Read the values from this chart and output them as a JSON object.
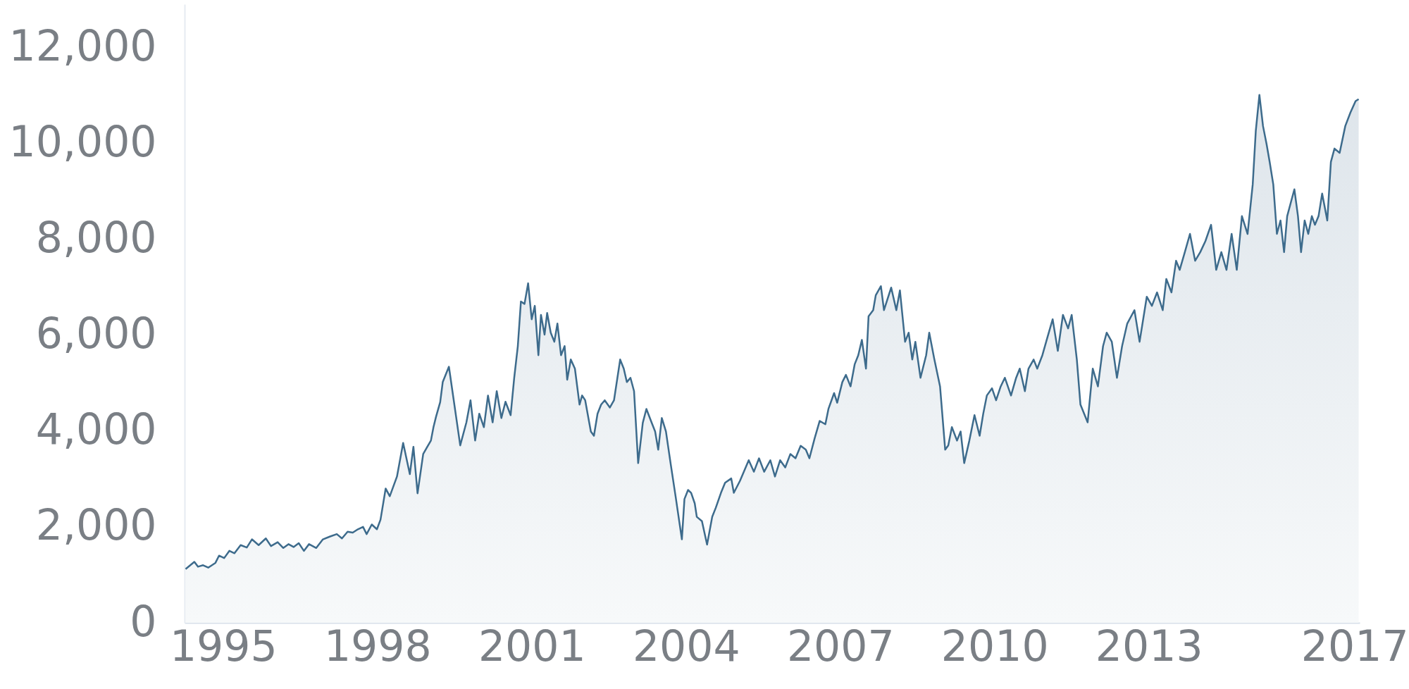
{
  "chart_data": {
    "type": "area",
    "xlim": [
      1994.25,
      2017.1
    ],
    "xticks": [
      1995,
      1998,
      2001,
      2004,
      2007,
      2010,
      2013,
      2017
    ],
    "ylim": [
      0,
      12900
    ],
    "yticks": [
      0,
      {
        "value": 2000,
        "label": "2,000"
      },
      {
        "value": 4000,
        "label": "4,000"
      },
      {
        "value": 6000,
        "label": "6,000"
      },
      {
        "value": 8000,
        "label": "8,000"
      },
      {
        "value": 10000,
        "label": "10,000"
      },
      {
        "value": 12000,
        "label": "12,000"
      }
    ],
    "grid": false,
    "marker": "none",
    "line_style": "solid",
    "series": [
      {
        "color": "#3d6b8c",
        "x": [
          1994.27,
          1994.44,
          1994.51,
          1994.61,
          1994.71,
          1994.85,
          1994.92,
          1995.02,
          1995.12,
          1995.22,
          1995.34,
          1995.46,
          1995.56,
          1995.69,
          1995.83,
          1995.93,
          1996.06,
          1996.17,
          1996.27,
          1996.37,
          1996.47,
          1996.57,
          1996.67,
          1996.81,
          1996.94,
          1997.08,
          1997.21,
          1997.31,
          1997.42,
          1997.52,
          1997.62,
          1997.72,
          1997.79,
          1997.89,
          1997.99,
          1998.06,
          1998.16,
          1998.24,
          1998.38,
          1998.5,
          1998.63,
          1998.7,
          1998.78,
          1998.89,
          1998.97,
          1999.04,
          1999.09,
          1999.14,
          1999.22,
          1999.27,
          1999.39,
          1999.61,
          1999.73,
          1999.81,
          1999.9,
          1999.98,
          2000.07,
          2000.15,
          2000.24,
          2000.32,
          2000.41,
          2000.49,
          2000.59,
          2000.66,
          2000.73,
          2000.79,
          2000.86,
          2000.93,
          2001.0,
          2001.06,
          2001.13,
          2001.18,
          2001.25,
          2001.3,
          2001.37,
          2001.44,
          2001.5,
          2001.57,
          2001.64,
          2001.69,
          2001.76,
          2001.84,
          2001.93,
          2001.98,
          2002.04,
          2002.15,
          2002.21,
          2002.28,
          2002.35,
          2002.42,
          2002.52,
          2002.6,
          2002.72,
          2002.79,
          2002.85,
          2002.92,
          2002.99,
          2003.07,
          2003.16,
          2003.23,
          2003.33,
          2003.4,
          2003.46,
          2003.53,
          2003.61,
          2003.7,
          2003.8,
          2003.92,
          2003.97,
          2004.04,
          2004.1,
          2004.17,
          2004.21,
          2004.31,
          2004.41,
          2004.51,
          2004.58,
          2004.68,
          2004.76,
          2004.88,
          2004.93,
          2005.05,
          2005.22,
          2005.32,
          2005.42,
          2005.52,
          2005.64,
          2005.73,
          2005.83,
          2005.93,
          2006.03,
          2006.13,
          2006.23,
          2006.33,
          2006.4,
          2006.5,
          2006.6,
          2006.71,
          2006.77,
          2006.88,
          2006.94,
          2007.04,
          2007.11,
          2007.2,
          2007.28,
          2007.35,
          2007.42,
          2007.5,
          2007.55,
          2007.64,
          2007.69,
          2007.79,
          2007.85,
          2007.99,
          2008.09,
          2008.16,
          2008.26,
          2008.33,
          2008.4,
          2008.46,
          2008.56,
          2008.67,
          2008.73,
          2008.83,
          2008.94,
          2009.04,
          2009.1,
          2009.17,
          2009.27,
          2009.34,
          2009.41,
          2009.51,
          2009.61,
          2009.71,
          2009.78,
          2009.85,
          2009.95,
          2010.03,
          2010.12,
          2010.2,
          2010.32,
          2010.42,
          2010.49,
          2010.59,
          2010.66,
          2010.76,
          2010.83,
          2010.93,
          2011.03,
          2011.13,
          2011.23,
          2011.33,
          2011.43,
          2011.5,
          2011.6,
          2011.67,
          2011.81,
          2011.91,
          2012.01,
          2012.11,
          2012.18,
          2012.28,
          2012.38,
          2012.48,
          2012.58,
          2012.72,
          2012.82,
          2012.96,
          2013.06,
          2013.16,
          2013.27,
          2013.34,
          2013.44,
          2013.53,
          2013.6,
          2013.7,
          2013.8,
          2013.9,
          2014.0,
          2014.1,
          2014.21,
          2014.31,
          2014.41,
          2014.51,
          2014.61,
          2014.71,
          2014.81,
          2014.92,
          2015.02,
          2015.08,
          2015.15,
          2015.22,
          2015.29,
          2015.35,
          2015.42,
          2015.49,
          2015.56,
          2015.63,
          2015.69,
          2015.76,
          2015.83,
          2015.9,
          2015.96,
          2016.03,
          2016.1,
          2016.17,
          2016.23,
          2016.3,
          2016.37,
          2016.47,
          2016.54,
          2016.61,
          2016.71,
          2016.82,
          2016.92,
          2017.02,
          2017.08
        ],
        "values": [
          1120,
          1270,
          1170,
          1200,
          1150,
          1250,
          1400,
          1350,
          1500,
          1450,
          1620,
          1570,
          1740,
          1620,
          1760,
          1600,
          1680,
          1560,
          1640,
          1580,
          1660,
          1500,
          1640,
          1560,
          1740,
          1800,
          1850,
          1760,
          1900,
          1880,
          1950,
          2000,
          1850,
          2050,
          1950,
          2150,
          2800,
          2640,
          3050,
          3750,
          3100,
          3670,
          2700,
          3520,
          3670,
          3800,
          4080,
          4300,
          4600,
          5020,
          5340,
          3700,
          4180,
          4640,
          3800,
          4360,
          4080,
          4740,
          4180,
          4830,
          4270,
          4610,
          4330,
          5110,
          5770,
          6700,
          6650,
          7080,
          6330,
          6610,
          5580,
          6420,
          6010,
          6460,
          6050,
          5860,
          6240,
          5580,
          5770,
          5070,
          5490,
          5300,
          4550,
          4740,
          4640,
          3990,
          3900,
          4360,
          4550,
          4640,
          4490,
          4640,
          5490,
          5300,
          5020,
          5110,
          4830,
          3330,
          4170,
          4460,
          4180,
          3990,
          3610,
          4270,
          3990,
          3330,
          2620,
          1740,
          2580,
          2770,
          2710,
          2490,
          2210,
          2120,
          1630,
          2210,
          2400,
          2710,
          2920,
          3010,
          2710,
          2960,
          3390,
          3150,
          3430,
          3150,
          3390,
          3050,
          3390,
          3240,
          3520,
          3430,
          3690,
          3610,
          3430,
          3840,
          4210,
          4140,
          4460,
          4790,
          4590,
          5020,
          5170,
          4930,
          5390,
          5580,
          5900,
          5300,
          6390,
          6520,
          6830,
          7020,
          6520,
          6990,
          6520,
          6930,
          5860,
          6050,
          5490,
          5860,
          5110,
          5580,
          6050,
          5490,
          4930,
          3610,
          3700,
          4080,
          3800,
          3990,
          3330,
          3800,
          4330,
          3900,
          4360,
          4740,
          4890,
          4640,
          4930,
          5110,
          4740,
          5110,
          5300,
          4830,
          5300,
          5490,
          5300,
          5580,
          5960,
          6330,
          5670,
          6420,
          6140,
          6420,
          5490,
          4550,
          4180,
          5300,
          4930,
          5770,
          6050,
          5860,
          5110,
          5770,
          6240,
          6520,
          5860,
          6800,
          6610,
          6890,
          6520,
          7170,
          6890,
          7550,
          7360,
          7730,
          8110,
          7550,
          7730,
          7960,
          8300,
          7360,
          7730,
          7360,
          8110,
          7360,
          8480,
          8110,
          9140,
          10260,
          11010,
          10360,
          9980,
          9610,
          9140,
          8110,
          8390,
          7730,
          8480,
          8760,
          9040,
          8480,
          7730,
          8390,
          8110,
          8480,
          8300,
          8480,
          8950,
          8390,
          9610,
          9890,
          9800,
          10360,
          10640,
          10880,
          10920
        ]
      }
    ]
  }
}
